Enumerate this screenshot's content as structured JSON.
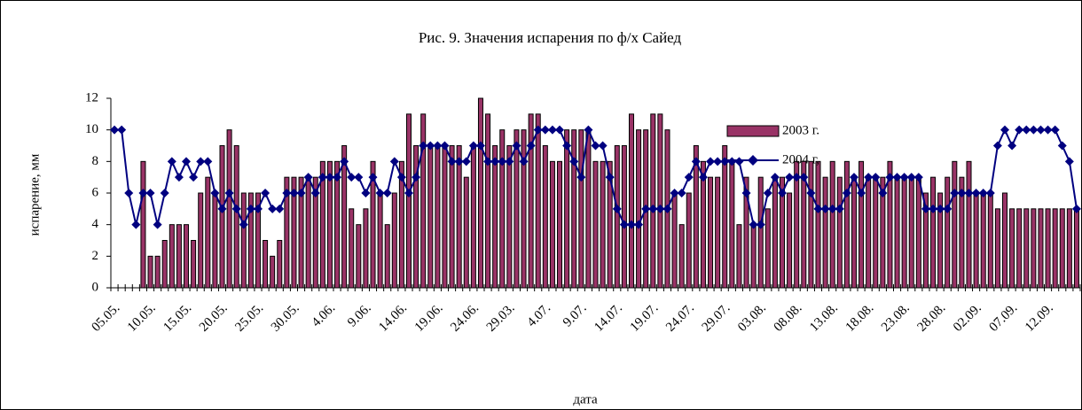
{
  "chart_data": {
    "type": "bar",
    "title": "Рис. 9.  Значения испарения по ф/х Сайед",
    "x_label": "дата",
    "y_label": "испарение, мм",
    "categories": [
      "05.05.",
      null,
      null,
      null,
      null,
      "10.05.",
      null,
      null,
      null,
      null,
      "15.05.",
      null,
      null,
      null,
      null,
      "20.05.",
      null,
      null,
      null,
      null,
      "25.05.",
      null,
      null,
      null,
      null,
      "30.05.",
      null,
      null,
      null,
      null,
      "4.06.",
      null,
      null,
      null,
      null,
      "9.06.",
      null,
      null,
      null,
      null,
      "14.06.",
      null,
      null,
      null,
      null,
      "19.06.",
      null,
      null,
      null,
      null,
      "24.06.",
      null,
      null,
      null,
      null,
      "29.03.",
      null,
      null,
      null,
      null,
      "4.07.",
      null,
      null,
      null,
      null,
      "9.07.",
      null,
      null,
      null,
      null,
      "14.07.",
      null,
      null,
      null,
      null,
      "19.07.",
      null,
      null,
      null,
      null,
      "24.07.",
      null,
      null,
      null,
      null,
      "29.07.",
      null,
      null,
      null,
      null,
      "03.08.",
      null,
      null,
      null,
      null,
      "08.08.",
      null,
      null,
      null,
      null,
      "13.08.",
      null,
      null,
      null,
      null,
      "18.08.",
      null,
      null,
      null,
      null,
      "23.08.",
      null,
      null,
      null,
      null,
      "28.08.",
      null,
      null,
      null,
      null,
      "02.09.",
      null,
      null,
      null,
      null,
      "07.09.",
      null,
      null,
      null,
      null,
      "12.09.",
      null,
      null,
      null,
      null
    ],
    "series": [
      {
        "name": "2003 г.",
        "type": "bar",
        "color": "#993366",
        "values": [
          null,
          null,
          null,
          null,
          8,
          2,
          2,
          3,
          4,
          4,
          4,
          3,
          6,
          7,
          6,
          9,
          10,
          9,
          6,
          6,
          6,
          3,
          2,
          3,
          7,
          7,
          7,
          7,
          7,
          8,
          8,
          8,
          9,
          5,
          4,
          5,
          8,
          6,
          4,
          6,
          8,
          11,
          9,
          11,
          9,
          9,
          9,
          9,
          9,
          7,
          9,
          12,
          11,
          9,
          10,
          9,
          10,
          10,
          11,
          11,
          9,
          8,
          8,
          10,
          10,
          10,
          10,
          8,
          8,
          8,
          9,
          9,
          11,
          10,
          10,
          11,
          11,
          10,
          6,
          4,
          6,
          9,
          8,
          7,
          7,
          9,
          8,
          4,
          7,
          4,
          7,
          5,
          7,
          7,
          6,
          8,
          8,
          8,
          8,
          7,
          8,
          7,
          8,
          7,
          8,
          7,
          7,
          7,
          8,
          7,
          7,
          7,
          7,
          6,
          7,
          6,
          7,
          8,
          7,
          8,
          6,
          6,
          6,
          5,
          6,
          5,
          5,
          5,
          5,
          5,
          5,
          5,
          5,
          5,
          5
        ]
      },
      {
        "name": "2004 г,",
        "type": "line",
        "color": "#000080",
        "values": [
          10,
          10,
          6,
          4,
          6,
          6,
          4,
          6,
          8,
          7,
          8,
          7,
          8,
          8,
          6,
          5,
          6,
          5,
          4,
          5,
          5,
          6,
          5,
          5,
          6,
          6,
          6,
          7,
          6,
          7,
          7,
          7,
          8,
          7,
          7,
          6,
          7,
          6,
          6,
          8,
          7,
          6,
          7,
          9,
          9,
          9,
          9,
          8,
          8,
          8,
          9,
          9,
          8,
          8,
          8,
          8,
          9,
          8,
          9,
          10,
          10,
          10,
          10,
          9,
          8,
          7,
          10,
          9,
          9,
          7,
          5,
          4,
          4,
          4,
          5,
          5,
          5,
          5,
          6,
          6,
          7,
          8,
          7,
          8,
          8,
          8,
          8,
          8,
          6,
          4,
          4,
          6,
          7,
          6,
          7,
          7,
          7,
          6,
          5,
          5,
          5,
          5,
          6,
          7,
          6,
          7,
          7,
          6,
          7,
          7,
          7,
          7,
          7,
          5,
          5,
          5,
          5,
          6,
          6,
          6,
          6,
          6,
          6,
          9,
          10,
          9,
          10,
          10,
          10,
          10,
          10,
          10,
          9,
          8,
          5
        ]
      }
    ],
    "ylim": [
      0,
      12
    ],
    "yticks": [
      0,
      2,
      4,
      6,
      8,
      10,
      12
    ]
  }
}
